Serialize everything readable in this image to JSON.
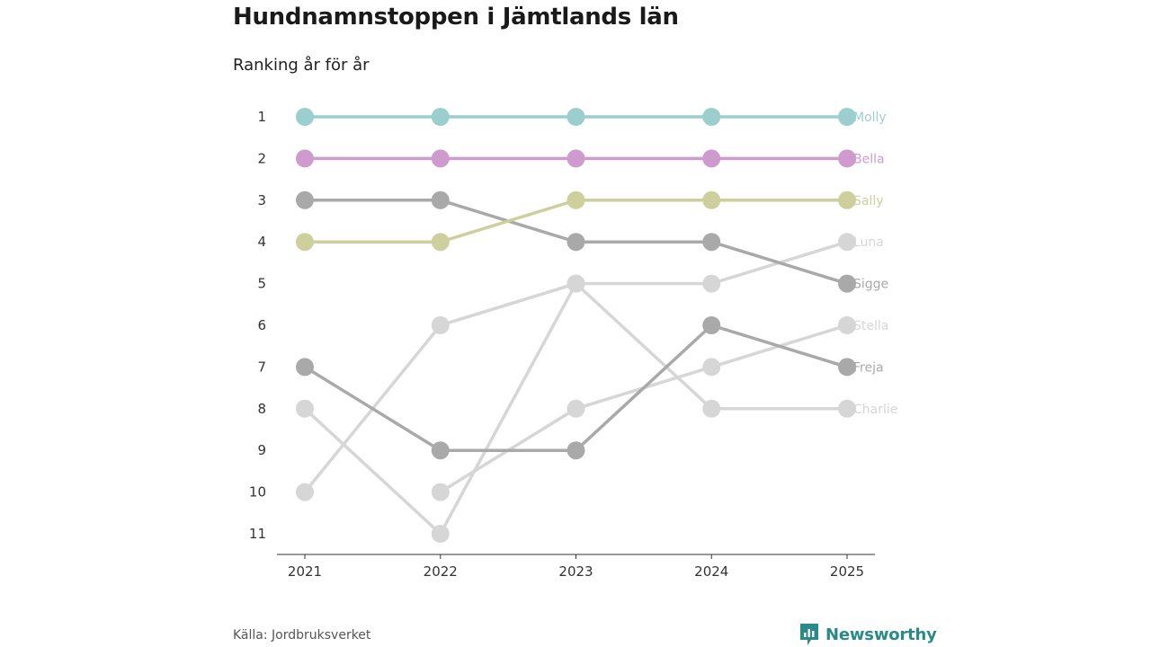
{
  "title": "Hundnamnstoppen i Jämtlands län",
  "subtitle": "Ranking år för år",
  "source": "Källa: Jordbruksverket",
  "brand": {
    "name": "Newsworthy",
    "color": "#2a8a8a"
  },
  "chart_data": {
    "type": "line",
    "subtype": "bump",
    "x": [
      "2021",
      "2022",
      "2023",
      "2024",
      "2025"
    ],
    "y_ticks": [
      "1",
      "2",
      "3",
      "4",
      "5",
      "6",
      "7",
      "8",
      "9",
      "10",
      "11"
    ],
    "ylim": [
      1,
      11
    ],
    "y_inverted": true,
    "xlabel": "",
    "ylabel": "",
    "grid": false,
    "series": [
      {
        "name": "Charlie",
        "values": [
          8,
          11,
          5,
          8,
          8
        ],
        "color": "#d6d6d6"
      },
      {
        "name": "Stella",
        "values": [
          null,
          10,
          8,
          7,
          6
        ],
        "color": "#d6d6d6"
      },
      {
        "name": "Luna",
        "values": [
          10,
          6,
          5,
          5,
          4
        ],
        "color": "#d6d6d6"
      },
      {
        "name": "Freja",
        "values": [
          7,
          9,
          9,
          6,
          7
        ],
        "color": "#a9a9a9"
      },
      {
        "name": "Sigge",
        "values": [
          3,
          3,
          4,
          4,
          5
        ],
        "color": "#a9a9a9"
      },
      {
        "name": "Sally",
        "values": [
          4,
          4,
          3,
          3,
          3
        ],
        "color": "#cdd09c"
      },
      {
        "name": "Bella",
        "values": [
          2,
          2,
          2,
          2,
          2
        ],
        "color": "#cf9bcf"
      },
      {
        "name": "Molly",
        "values": [
          1,
          1,
          1,
          1,
          1
        ],
        "color": "#9bcfcd"
      }
    ]
  }
}
